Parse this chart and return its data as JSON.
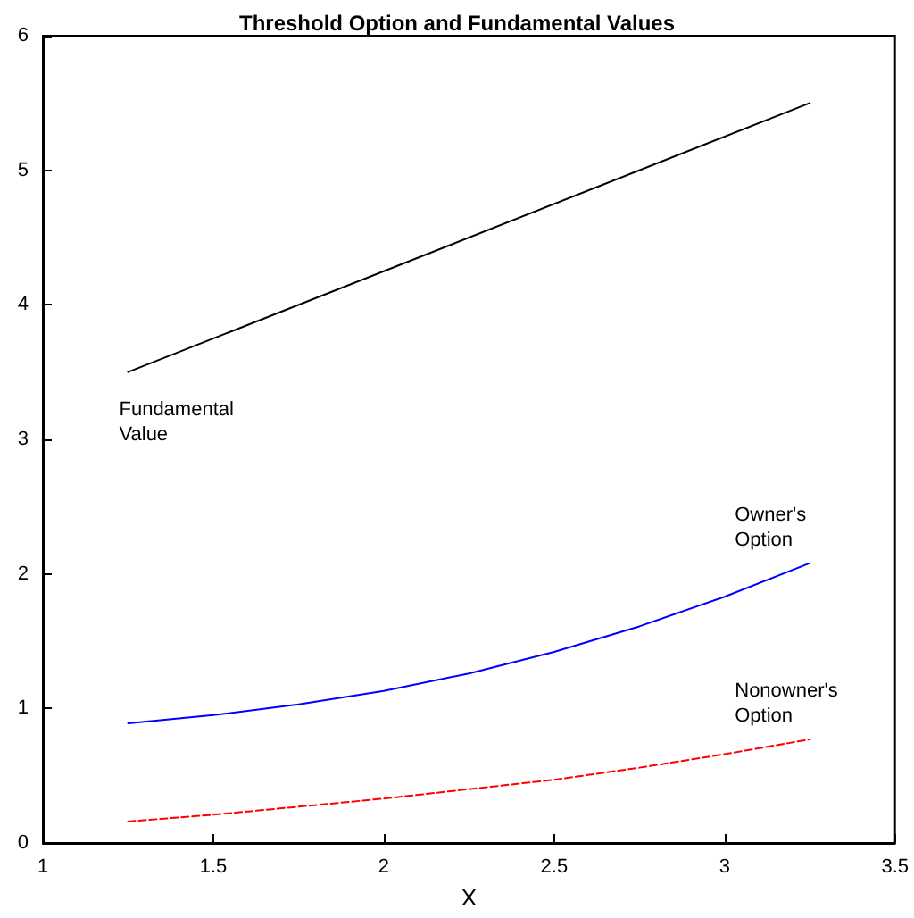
{
  "chart_data": {
    "type": "line",
    "title": "Threshold Option and Fundamental Values",
    "xlabel": "X",
    "xlim": [
      1,
      3.5
    ],
    "xticks": [
      1,
      1.5,
      2,
      2.5,
      3,
      3.5
    ],
    "ylim": [
      0,
      6
    ],
    "yticks": [
      0,
      1,
      2,
      3,
      4,
      5,
      6
    ],
    "grid": false,
    "marker": "none",
    "series": [
      {
        "name": "Fundamental\nValue",
        "x": [
          1.25,
          3.25
        ],
        "values": [
          3.5,
          5.5
        ],
        "color": "#000000",
        "line_style": "solid"
      },
      {
        "name": "Owner's\nOption",
        "x": [
          1.25,
          1.5,
          1.75,
          2,
          2.25,
          2.5,
          2.75,
          3,
          3.25
        ],
        "values": [
          0.89,
          0.95,
          1.03,
          1.13,
          1.26,
          1.42,
          1.61,
          1.83,
          2.08
        ],
        "color": "#0000ff",
        "line_style": "solid"
      },
      {
        "name": "Nonowner's\nOption",
        "x": [
          1.25,
          1.5,
          1.75,
          2,
          2.25,
          2.5,
          2.75,
          3,
          3.25
        ],
        "values": [
          0.16,
          0.21,
          0.27,
          0.33,
          0.4,
          0.47,
          0.56,
          0.66,
          0.77
        ],
        "color": "#ff0000",
        "line_style": "dashed"
      }
    ]
  }
}
